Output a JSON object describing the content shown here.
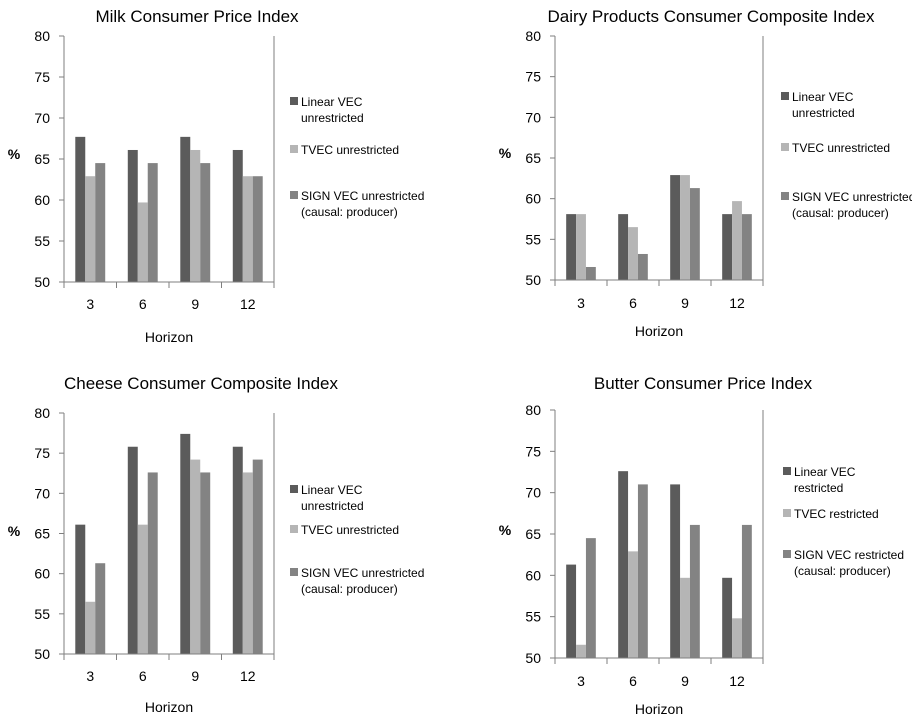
{
  "palette": {
    "series_colors": [
      "#5b5b5b",
      "#b5b5b5",
      "#838383"
    ],
    "axis_color": "#7f7f7f"
  },
  "chart_data": [
    {
      "type": "bar",
      "title": "Milk Consumer Price Index",
      "xlabel": "Horizon",
      "ylabel": "%",
      "categories": [
        "3",
        "6",
        "9",
        "12"
      ],
      "ylim": [
        50,
        80
      ],
      "yticks": [
        50,
        55,
        60,
        65,
        70,
        75,
        80
      ],
      "grid": false,
      "legend_position": "right",
      "series": [
        {
          "name": "Linear VEC unrestricted",
          "legend_lines": [
            "Linear VEC",
            "unrestricted"
          ],
          "values": [
            67.7,
            66.1,
            67.7,
            66.1
          ]
        },
        {
          "name": "TVEC unrestricted",
          "legend_lines": [
            "TVEC unrestricted"
          ],
          "values": [
            62.9,
            59.7,
            66.1,
            62.9
          ]
        },
        {
          "name": "SIGN VEC unrestricted (causal: producer)",
          "legend_lines": [
            "SIGN VEC unrestricted",
            "(causal: producer)"
          ],
          "values": [
            64.5,
            64.5,
            64.5,
            62.9
          ]
        }
      ]
    },
    {
      "type": "bar",
      "title": "Dairy Products Consumer Composite Index",
      "xlabel": "Horizon",
      "ylabel": "%",
      "categories": [
        "3",
        "6",
        "9",
        "12"
      ],
      "ylim": [
        50,
        80
      ],
      "yticks": [
        50,
        55,
        60,
        65,
        70,
        75,
        80
      ],
      "grid": false,
      "legend_position": "right",
      "series": [
        {
          "name": "Linear VEC unrestricted",
          "legend_lines": [
            "Linear VEC",
            "unrestricted"
          ],
          "values": [
            58.1,
            58.1,
            62.9,
            58.1
          ]
        },
        {
          "name": "TVEC unrestricted",
          "legend_lines": [
            "TVEC unrestricted"
          ],
          "values": [
            58.1,
            56.5,
            62.9,
            59.7
          ]
        },
        {
          "name": "SIGN VEC unrestricted (causal: producer)",
          "legend_lines": [
            "SIGN VEC unrestricted",
            "(causal: producer)"
          ],
          "values": [
            51.6,
            53.2,
            61.3,
            58.1
          ]
        }
      ]
    },
    {
      "type": "bar",
      "title": "Cheese Consumer Composite Index",
      "xlabel": "Horizon",
      "ylabel": "%",
      "categories": [
        "3",
        "6",
        "9",
        "12"
      ],
      "ylim": [
        50,
        80
      ],
      "yticks": [
        50,
        55,
        60,
        65,
        70,
        75,
        80
      ],
      "grid": false,
      "legend_position": "right",
      "series": [
        {
          "name": "Linear VEC unrestricted",
          "legend_lines": [
            "Linear VEC",
            "unrestricted"
          ],
          "values": [
            66.1,
            75.8,
            77.4,
            75.8
          ]
        },
        {
          "name": "TVEC unrestricted",
          "legend_lines": [
            "TVEC unrestricted"
          ],
          "values": [
            56.5,
            66.1,
            74.2,
            72.6
          ]
        },
        {
          "name": "SIGN VEC unrestricted (causal: producer)",
          "legend_lines": [
            "SIGN VEC unrestricted",
            "(causal: producer)"
          ],
          "values": [
            61.3,
            72.6,
            72.6,
            74.2
          ]
        }
      ]
    },
    {
      "type": "bar",
      "title": "Butter Consumer Price Index",
      "xlabel": "Horizon",
      "ylabel": "%",
      "categories": [
        "3",
        "6",
        "9",
        "12"
      ],
      "ylim": [
        50,
        80
      ],
      "yticks": [
        50,
        55,
        60,
        65,
        70,
        75,
        80
      ],
      "grid": false,
      "legend_position": "right",
      "series": [
        {
          "name": "Linear VEC restricted",
          "legend_lines": [
            "Linear VEC",
            "restricted"
          ],
          "values": [
            61.3,
            72.6,
            71.0,
            59.7
          ]
        },
        {
          "name": "TVEC restricted",
          "legend_lines": [
            "TVEC restricted"
          ],
          "values": [
            51.6,
            62.9,
            59.7,
            54.8
          ]
        },
        {
          "name": "SIGN VEC restricted (causal: producer)",
          "legend_lines": [
            "SIGN VEC restricted",
            "(causal: producer)"
          ],
          "values": [
            64.5,
            71.0,
            66.1,
            66.1
          ]
        }
      ]
    }
  ]
}
